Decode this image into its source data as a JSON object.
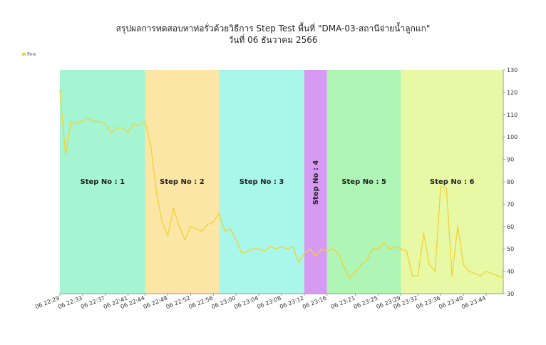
{
  "chart_data": {
    "type": "line",
    "title": "สรุปผลการทดสอบหาท่อรั่วด้วยวิธีการ Step Test พื้นที่ \"DMA-03-สถานีจ่ายน้ำลูกแก\"",
    "subtitle": "วันที่ 06 ธันวาคม 2566",
    "ylim": [
      30,
      130
    ],
    "y_ticks": [
      30,
      40,
      50,
      60,
      70,
      80,
      90,
      100,
      110,
      120,
      130
    ],
    "y_axis_position": "right",
    "legend": {
      "position": "top-left",
      "entries": [
        "flow"
      ]
    },
    "x_ticks": [
      "06 22:29",
      "06 22:33",
      "06 22:37",
      "06 22:41",
      "06 22:44",
      "06 22:48",
      "06 22:52",
      "06 22:56",
      "06 23:00",
      "06 23:04",
      "06 23:08",
      "06 23:12",
      "06 23:16",
      "06 23:21",
      "06 23:25",
      "06 23:29",
      "06 23:32",
      "06 23:36",
      "06 23:40",
      "06 23:44"
    ],
    "x_range": [
      "06 22:29",
      "06 23:47"
    ],
    "steps": [
      {
        "label": "Step No : 1",
        "start": "06 22:29",
        "end": "06 22:44",
        "color": "#a6f5d2"
      },
      {
        "label": "Step No : 2",
        "start": "06 22:44",
        "end": "06 22:57",
        "color": "#fbe6a6"
      },
      {
        "label": "Step No : 3",
        "start": "06 22:57",
        "end": "06 23:12",
        "color": "#a8f7ea"
      },
      {
        "label": "Step No : 4",
        "start": "06 23:12",
        "end": "06 23:16",
        "color": "#d69af2",
        "vertical": true
      },
      {
        "label": "Step No : 5",
        "start": "06 23:16",
        "end": "06 23:29",
        "color": "#aef5b6"
      },
      {
        "label": "Step No : 6",
        "start": "06 23:29",
        "end": "06 23:47",
        "color": "#e8f9a6"
      }
    ],
    "series": [
      {
        "name": "flow",
        "color": "#f2d232",
        "points": [
          [
            "06 22:29",
            121
          ],
          [
            "06 22:30",
            92
          ],
          [
            "06 22:31",
            107
          ],
          [
            "06 22:32",
            106
          ],
          [
            "06 22:33",
            107
          ],
          [
            "06 22:34",
            108
          ],
          [
            "06 22:35",
            107
          ],
          [
            "06 22:36",
            107
          ],
          [
            "06 22:37",
            106
          ],
          [
            "06 22:38",
            102
          ],
          [
            "06 22:39",
            104
          ],
          [
            "06 22:40",
            104
          ],
          [
            "06 22:41",
            102
          ],
          [
            "06 22:42",
            106
          ],
          [
            "06 22:43",
            105
          ],
          [
            "06 22:44",
            107
          ],
          [
            "06 22:45",
            96
          ],
          [
            "06 22:46",
            75
          ],
          [
            "06 22:47",
            62
          ],
          [
            "06 22:48",
            56
          ],
          [
            "06 22:49",
            68
          ],
          [
            "06 22:50",
            60
          ],
          [
            "06 22:51",
            54
          ],
          [
            "06 22:52",
            60
          ],
          [
            "06 22:53",
            59
          ],
          [
            "06 22:54",
            58
          ],
          [
            "06 22:55",
            61
          ],
          [
            "06 22:56",
            62
          ],
          [
            "06 22:57",
            66
          ],
          [
            "06 22:58",
            58
          ],
          [
            "06 22:59",
            59
          ],
          [
            "06 23:00",
            54
          ],
          [
            "06 23:01",
            48
          ],
          [
            "06 23:02",
            49
          ],
          [
            "06 23:03",
            50
          ],
          [
            "06 23:04",
            50
          ],
          [
            "06 23:05",
            49
          ],
          [
            "06 23:06",
            51
          ],
          [
            "06 23:07",
            50
          ],
          [
            "06 23:08",
            51
          ],
          [
            "06 23:09",
            50
          ],
          [
            "06 23:10",
            51
          ],
          [
            "06 23:11",
            44
          ],
          [
            "06 23:12",
            48
          ],
          [
            "06 23:13",
            50
          ],
          [
            "06 23:14",
            47
          ],
          [
            "06 23:15",
            50
          ],
          [
            "06 23:16",
            49
          ],
          [
            "06 23:17",
            50
          ],
          [
            "06 23:18",
            48
          ],
          [
            "06 23:19",
            42
          ],
          [
            "06 23:20",
            37
          ],
          [
            "06 23:21",
            40
          ],
          [
            "06 23:22",
            43
          ],
          [
            "06 23:23",
            45
          ],
          [
            "06 23:24",
            50
          ],
          [
            "06 23:25",
            50
          ],
          [
            "06 23:26",
            53
          ],
          [
            "06 23:27",
            50
          ],
          [
            "06 23:28",
            51
          ],
          [
            "06 23:29",
            50
          ],
          [
            "06 23:30",
            49
          ],
          [
            "06 23:31",
            38
          ],
          [
            "06 23:32",
            38
          ],
          [
            "06 23:33",
            57
          ],
          [
            "06 23:34",
            43
          ],
          [
            "06 23:35",
            40
          ],
          [
            "06 23:36",
            78
          ],
          [
            "06 23:37",
            77
          ],
          [
            "06 23:38",
            38
          ],
          [
            "06 23:39",
            60
          ],
          [
            "06 23:40",
            43
          ],
          [
            "06 23:41",
            40
          ],
          [
            "06 23:42",
            39
          ],
          [
            "06 23:43",
            38
          ],
          [
            "06 23:44",
            40
          ],
          [
            "06 23:45",
            39
          ],
          [
            "06 23:46",
            38
          ],
          [
            "06 23:47",
            37
          ]
        ]
      }
    ]
  }
}
